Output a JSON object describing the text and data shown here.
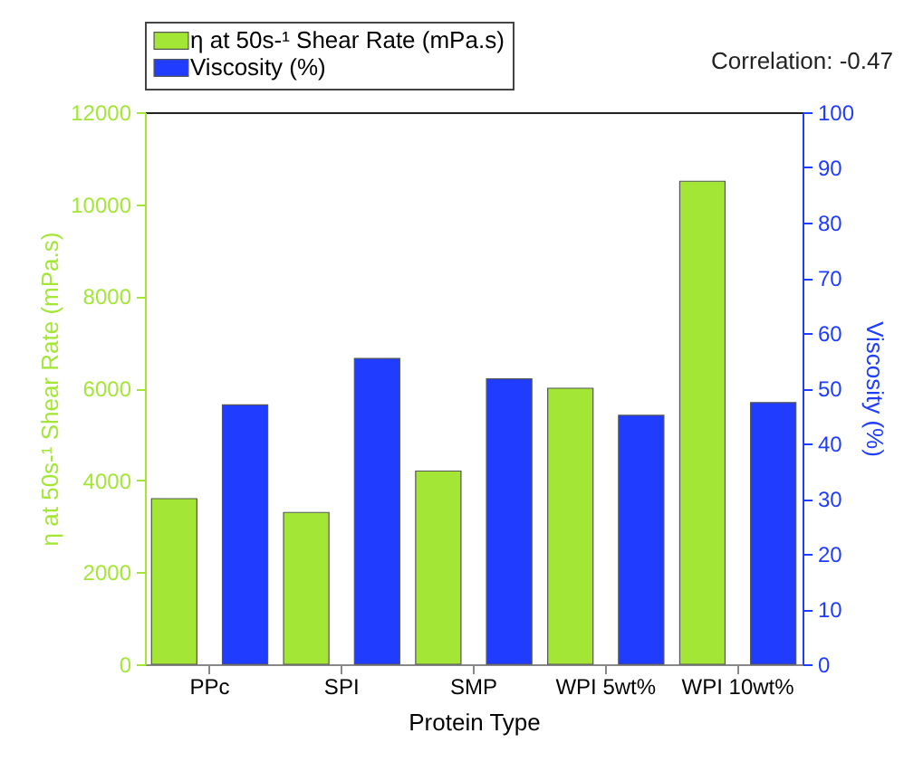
{
  "chart_data": {
    "type": "bar",
    "xlabel": "Protein Type",
    "ylabel": "η at 50s-¹ Shear Rate (mPa.s)",
    "y2label": "Viscosity (%)",
    "categories": [
      "PPc",
      "SPI",
      "SMP",
      "WPI 5wt%",
      "WPI 10wt%"
    ],
    "series": [
      {
        "name": "η at 50s-¹ Shear Rate (mPa.s)",
        "color": "#a3e635",
        "values": [
          3600,
          3300,
          4200,
          6000,
          10500
        ]
      },
      {
        "name": "Viscosity (%)",
        "color": "#1f3cff",
        "axis": "y2",
        "values": [
          47,
          55.4,
          51.7,
          45.1,
          47.4
        ]
      }
    ],
    "ylim": [
      0,
      12000
    ],
    "yticks": [
      0,
      2000,
      4000,
      6000,
      8000,
      10000,
      12000
    ],
    "y2lim": [
      0,
      100
    ],
    "y2ticks": [
      0,
      10,
      20,
      30,
      40,
      50,
      60,
      70,
      80,
      90,
      100
    ],
    "legend": "top left",
    "grid": false,
    "annotations": [
      "Correlation: -0.47"
    ]
  }
}
